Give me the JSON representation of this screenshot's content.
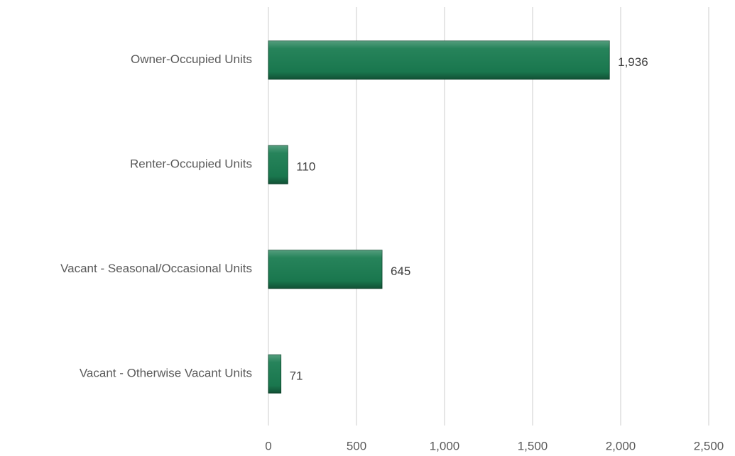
{
  "chart_data": {
    "type": "hbar",
    "categories": [
      "Owner-Occupied Units",
      "Renter-Occupied Units",
      "Vacant - Seasonal/Occasional Units",
      "Vacant - Otherwise Vacant Units"
    ],
    "values": [
      1936,
      110,
      645,
      71
    ],
    "value_labels": [
      "1,936",
      "110",
      "645",
      "71"
    ],
    "color": "#1b7d52",
    "xlim": [
      0,
      2500
    ],
    "xticks": [
      0,
      500,
      {
        "value": 1000,
        "label": "1,000"
      },
      {
        "value": 1500,
        "label": "1,500"
      },
      {
        "value": 2000,
        "label": "2,000"
      },
      {
        "value": 2500,
        "label": "2,500"
      }
    ],
    "grid": true
  }
}
